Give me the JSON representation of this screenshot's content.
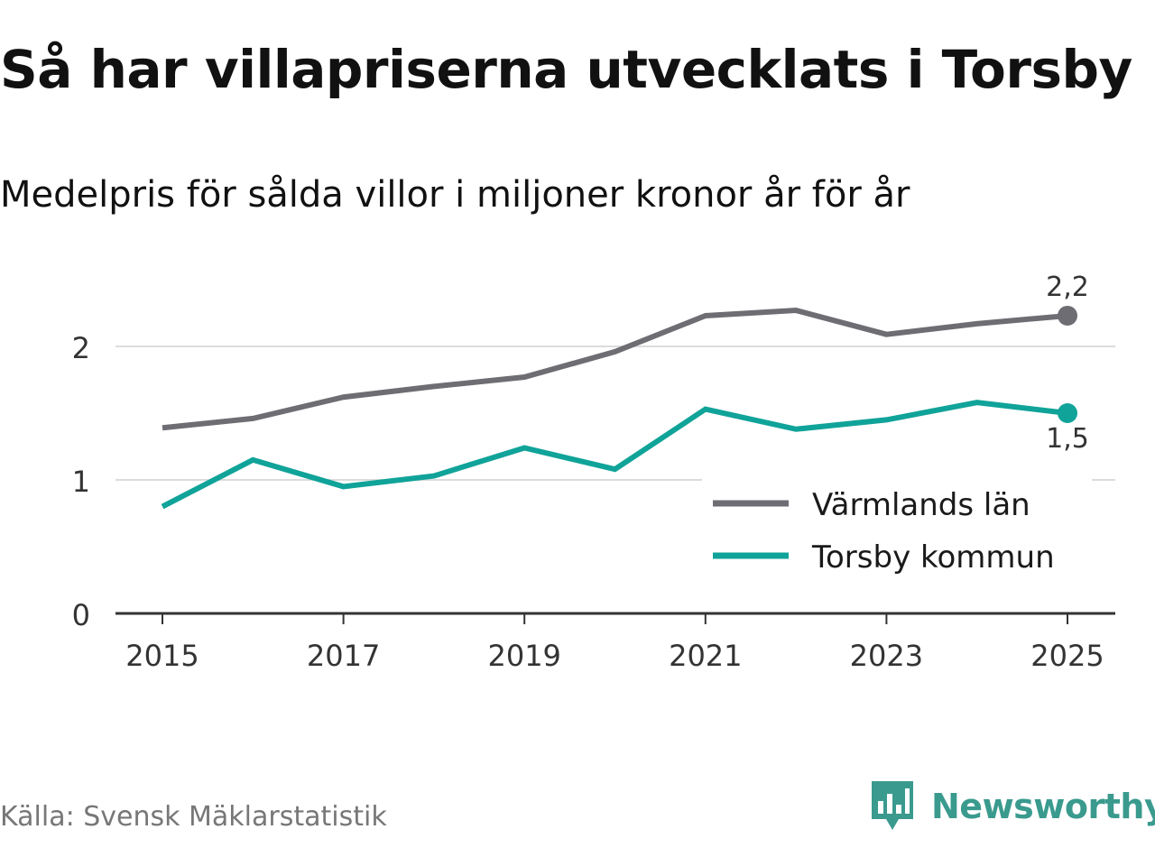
{
  "header": {
    "title": "Så har villapriserna utvecklats i Torsby",
    "subtitle": "Medelpris för sålda villor i miljoner kronor år för år"
  },
  "chart_data": {
    "type": "line",
    "title": "Så har villapriserna utvecklats i Torsby",
    "subtitle": "Medelpris för sålda villor i miljoner kronor år för år",
    "xlabel": "",
    "ylabel": "",
    "x": [
      2015,
      2016,
      2017,
      2018,
      2019,
      2020,
      2021,
      2022,
      2023,
      2024,
      2025
    ],
    "x_ticks": [
      "2015",
      "2017",
      "2019",
      "2021",
      "2023",
      "2025"
    ],
    "y_ticks": [
      "0",
      "1",
      "2"
    ],
    "ylim": [
      0,
      2.6
    ],
    "xlim": [
      2014.5,
      2025.5
    ],
    "grid": true,
    "legend_position": "bottom-right",
    "series": [
      {
        "name": "Värmlands län",
        "color": "#6e6d73",
        "values": [
          1.39,
          1.46,
          1.62,
          1.7,
          1.77,
          1.96,
          2.23,
          2.27,
          2.09,
          2.17,
          2.23
        ],
        "end_label": "2,2"
      },
      {
        "name": "Torsby kommun",
        "color": "#10a399",
        "values": [
          0.8,
          1.15,
          0.95,
          1.03,
          1.24,
          1.08,
          1.53,
          1.38,
          1.45,
          1.58,
          1.5
        ],
        "end_label": "1,5"
      }
    ]
  },
  "footer": {
    "source": "Källa: Svensk Mäklarstatistik",
    "brand": "Newsworthy"
  },
  "colors": {
    "grid": "#dcdcdc",
    "axis": "#333333",
    "text": "#333333",
    "brand": "#3a9a8e"
  },
  "icons": {
    "brand_logo": "newsworthy-logo-icon"
  }
}
